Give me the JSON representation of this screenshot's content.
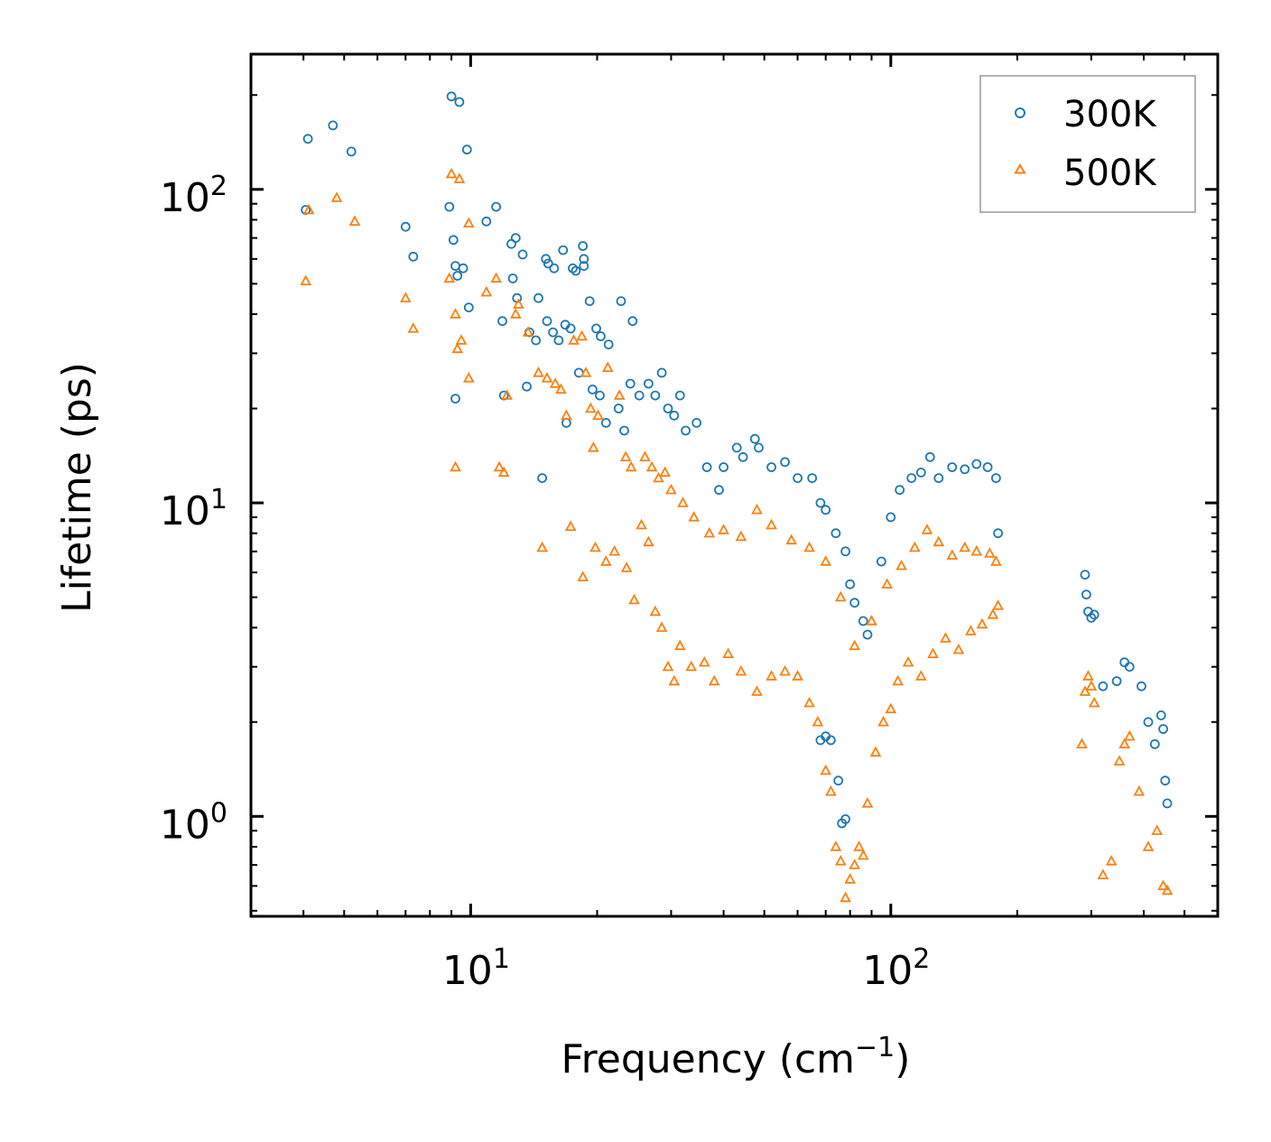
{
  "chart_data": {
    "type": "scatter",
    "xlabel": "Frequency (cm",
    "xlabel_sup": "−1",
    "xlabel_end": ")",
    "ylabel": "Lifetime (ps)",
    "xscale": "log",
    "yscale": "log",
    "xlim": [
      3.0,
      600.0
    ],
    "ylim": [
      0.48,
      270.0
    ],
    "x_major_ticks": [
      {
        "value": 10,
        "base": "10",
        "exp": "1"
      },
      {
        "value": 100,
        "base": "10",
        "exp": "2"
      }
    ],
    "y_major_ticks": [
      {
        "value": 1,
        "base": "10",
        "exp": "0"
      },
      {
        "value": 10,
        "base": "10",
        "exp": "1"
      },
      {
        "value": 100,
        "base": "10",
        "exp": "2"
      }
    ],
    "legend_position": "top-right",
    "series": [
      {
        "name": "300K",
        "marker": "circle",
        "color": "#1f77b4",
        "points": [
          [
            4.1,
            145
          ],
          [
            4.7,
            160
          ],
          [
            5.2,
            132
          ],
          [
            4.05,
            86
          ],
          [
            7.0,
            76
          ],
          [
            7.3,
            61
          ],
          [
            8.9,
            88
          ],
          [
            9.1,
            69
          ],
          [
            9.2,
            57
          ],
          [
            9.3,
            53
          ],
          [
            9.6,
            56
          ],
          [
            9.9,
            42
          ],
          [
            9.0,
            198
          ],
          [
            9.4,
            190
          ],
          [
            9.8,
            134
          ],
          [
            10.9,
            79
          ],
          [
            11.5,
            88
          ],
          [
            11.9,
            38
          ],
          [
            12.5,
            67
          ],
          [
            12.8,
            70
          ],
          [
            13.3,
            62
          ],
          [
            12.6,
            52
          ],
          [
            12.9,
            45
          ],
          [
            13.8,
            35
          ],
          [
            14.5,
            45
          ],
          [
            15.1,
            60
          ],
          [
            15.3,
            58
          ],
          [
            15.8,
            56
          ],
          [
            16.6,
            64
          ],
          [
            17.5,
            56
          ],
          [
            17.8,
            55
          ],
          [
            18.5,
            66
          ],
          [
            18.6,
            60
          ],
          [
            18.6,
            57
          ],
          [
            19.2,
            44
          ],
          [
            19.9,
            36
          ],
          [
            20.4,
            34
          ],
          [
            21.3,
            32
          ],
          [
            22.8,
            44
          ],
          [
            24.3,
            38
          ],
          [
            14.3,
            33
          ],
          [
            15.7,
            35
          ],
          [
            16.2,
            33
          ],
          [
            16.8,
            37
          ],
          [
            17.3,
            36
          ],
          [
            9.2,
            21.5
          ],
          [
            12.0,
            22
          ],
          [
            13.6,
            23.5
          ],
          [
            14.8,
            12
          ],
          [
            15.2,
            38
          ],
          [
            16.9,
            18
          ],
          [
            18.1,
            26
          ],
          [
            19.5,
            23
          ],
          [
            20.3,
            22
          ],
          [
            21.0,
            18
          ],
          [
            22.5,
            20
          ],
          [
            23.2,
            17
          ],
          [
            24.0,
            24
          ],
          [
            25.2,
            22
          ],
          [
            26.5,
            24
          ],
          [
            27.5,
            22
          ],
          [
            28.5,
            26
          ],
          [
            29.5,
            20
          ],
          [
            30.5,
            19
          ],
          [
            31.5,
            22
          ],
          [
            32.5,
            17
          ],
          [
            34.5,
            18
          ],
          [
            36.5,
            13
          ],
          [
            39.0,
            11
          ],
          [
            40.0,
            13
          ],
          [
            43.0,
            15
          ],
          [
            44.5,
            14
          ],
          [
            47.5,
            16
          ],
          [
            48.5,
            15
          ],
          [
            52.0,
            13
          ],
          [
            56.0,
            13.5
          ],
          [
            60.0,
            12
          ],
          [
            65.0,
            12
          ],
          [
            68.0,
            10
          ],
          [
            70.0,
            9.5
          ],
          [
            74.0,
            8
          ],
          [
            78.0,
            7
          ],
          [
            80.0,
            5.5
          ],
          [
            82.0,
            4.8
          ],
          [
            86.0,
            4.2
          ],
          [
            88.0,
            3.8
          ],
          [
            95.0,
            6.5
          ],
          [
            100.0,
            9
          ],
          [
            105.0,
            11
          ],
          [
            112.0,
            12
          ],
          [
            118.0,
            12.5
          ],
          [
            124.0,
            14
          ],
          [
            130.0,
            12
          ],
          [
            140.0,
            13
          ],
          [
            150.0,
            12.8
          ],
          [
            160.0,
            13.3
          ],
          [
            170.0,
            13
          ],
          [
            178.0,
            12
          ],
          [
            180.0,
            8
          ],
          [
            68.0,
            1.75
          ],
          [
            70.0,
            1.8
          ],
          [
            72.0,
            1.75
          ],
          [
            75.0,
            1.3
          ],
          [
            76.5,
            0.95
          ],
          [
            78.0,
            0.98
          ],
          [
            290.0,
            5.9
          ],
          [
            292.0,
            5.1
          ],
          [
            295.0,
            4.5
          ],
          [
            300.0,
            4.3
          ],
          [
            305.0,
            4.4
          ],
          [
            320.0,
            2.6
          ],
          [
            345.0,
            2.7
          ],
          [
            360.0,
            3.1
          ],
          [
            370.0,
            3.0
          ],
          [
            395.0,
            2.6
          ],
          [
            410.0,
            2.0
          ],
          [
            425.0,
            1.7
          ],
          [
            440.0,
            2.1
          ],
          [
            445.0,
            1.9
          ],
          [
            450.0,
            1.3
          ],
          [
            455.0,
            1.1
          ]
        ]
      },
      {
        "name": "500K",
        "marker": "triangle",
        "color": "#ff7f0e",
        "points": [
          [
            4.05,
            51
          ],
          [
            4.12,
            86
          ],
          [
            4.8,
            94
          ],
          [
            5.3,
            79
          ],
          [
            7.0,
            45
          ],
          [
            7.3,
            36
          ],
          [
            8.9,
            52
          ],
          [
            9.0,
            112
          ],
          [
            9.2,
            40
          ],
          [
            9.3,
            31
          ],
          [
            9.4,
            108
          ],
          [
            9.5,
            33
          ],
          [
            9.9,
            78
          ],
          [
            9.9,
            25
          ],
          [
            9.2,
            13
          ],
          [
            10.9,
            47
          ],
          [
            11.5,
            52
          ],
          [
            11.7,
            13
          ],
          [
            12.0,
            12.5
          ],
          [
            12.2,
            22
          ],
          [
            12.8,
            40
          ],
          [
            13.0,
            43
          ],
          [
            13.7,
            35
          ],
          [
            14.5,
            26
          ],
          [
            14.8,
            7.2
          ],
          [
            15.2,
            25
          ],
          [
            15.9,
            24
          ],
          [
            16.4,
            23
          ],
          [
            16.9,
            19
          ],
          [
            17.3,
            8.4
          ],
          [
            17.6,
            33
          ],
          [
            18.4,
            34
          ],
          [
            18.8,
            26
          ],
          [
            19.3,
            20
          ],
          [
            19.6,
            15
          ],
          [
            20.1,
            19
          ],
          [
            21.2,
            27
          ],
          [
            22.6,
            22
          ],
          [
            23.4,
            14
          ],
          [
            24.1,
            13
          ],
          [
            18.5,
            5.8
          ],
          [
            19.8,
            7.2
          ],
          [
            21.0,
            6.5
          ],
          [
            22.0,
            7.0
          ],
          [
            23.5,
            6.2
          ],
          [
            24.5,
            4.9
          ],
          [
            25.5,
            8.5
          ],
          [
            26.5,
            7.5
          ],
          [
            27.5,
            4.5
          ],
          [
            28.5,
            4.0
          ],
          [
            29.5,
            3.0
          ],
          [
            30.5,
            2.7
          ],
          [
            31.5,
            3.5
          ],
          [
            33.5,
            3.0
          ],
          [
            36.0,
            3.1
          ],
          [
            38.0,
            2.7
          ],
          [
            41.0,
            3.3
          ],
          [
            44.0,
            2.9
          ],
          [
            48.0,
            2.5
          ],
          [
            52.0,
            2.8
          ],
          [
            56.0,
            2.9
          ],
          [
            60.0,
            2.8
          ],
          [
            64.0,
            2.3
          ],
          [
            67.0,
            2.0
          ],
          [
            70.0,
            1.4
          ],
          [
            72.0,
            1.2
          ],
          [
            74.0,
            0.8
          ],
          [
            76.0,
            0.72
          ],
          [
            78.0,
            0.55
          ],
          [
            80.0,
            0.63
          ],
          [
            82.0,
            0.7
          ],
          [
            84.0,
            0.8
          ],
          [
            86.0,
            0.75
          ],
          [
            88.0,
            1.1
          ],
          [
            92.0,
            1.6
          ],
          [
            96.0,
            2.0
          ],
          [
            100.0,
            2.2
          ],
          [
            104.0,
            2.7
          ],
          [
            110.0,
            3.1
          ],
          [
            118.0,
            2.8
          ],
          [
            126.0,
            3.3
          ],
          [
            135.0,
            3.7
          ],
          [
            145.0,
            3.4
          ],
          [
            155.0,
            3.9
          ],
          [
            165.0,
            4.1
          ],
          [
            175.0,
            4.4
          ],
          [
            180.0,
            4.7
          ],
          [
            26.0,
            14
          ],
          [
            27.0,
            13
          ],
          [
            28.0,
            12
          ],
          [
            29.0,
            12.5
          ],
          [
            30.0,
            11
          ],
          [
            32.0,
            10
          ],
          [
            34.0,
            9
          ],
          [
            37.0,
            8
          ],
          [
            40.0,
            8.2
          ],
          [
            44.0,
            7.8
          ],
          [
            48.0,
            9.5
          ],
          [
            52.0,
            8.5
          ],
          [
            58.0,
            7.6
          ],
          [
            64.0,
            7.2
          ],
          [
            70.0,
            6.5
          ],
          [
            76.0,
            5.0
          ],
          [
            82.0,
            3.5
          ],
          [
            90.0,
            4.2
          ],
          [
            98.0,
            5.5
          ],
          [
            106.0,
            6.3
          ],
          [
            114.0,
            7.2
          ],
          [
            122.0,
            8.2
          ],
          [
            130.0,
            7.5
          ],
          [
            140.0,
            6.8
          ],
          [
            150.0,
            7.2
          ],
          [
            160.0,
            7.0
          ],
          [
            172.0,
            6.9
          ],
          [
            178.0,
            6.5
          ],
          [
            285.0,
            1.7
          ],
          [
            290.0,
            2.5
          ],
          [
            295.0,
            2.8
          ],
          [
            300.0,
            2.6
          ],
          [
            305.0,
            2.3
          ],
          [
            320.0,
            0.65
          ],
          [
            335.0,
            0.72
          ],
          [
            350.0,
            1.5
          ],
          [
            360.0,
            1.7
          ],
          [
            370.0,
            1.8
          ],
          [
            390.0,
            1.2
          ],
          [
            410.0,
            0.8
          ],
          [
            430.0,
            0.9
          ],
          [
            445.0,
            0.6
          ],
          [
            455.0,
            0.58
          ]
        ]
      }
    ]
  }
}
